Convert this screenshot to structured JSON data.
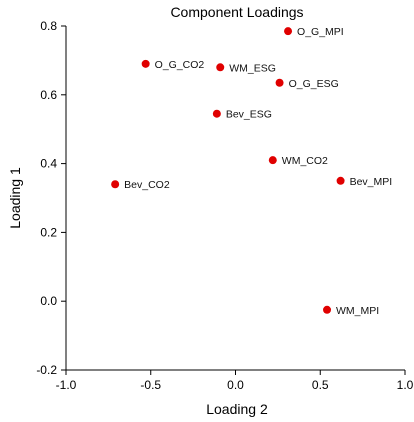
{
  "chart_data": {
    "type": "scatter",
    "title": "Component Loadings",
    "xlabel": "Loading 2",
    "ylabel": "Loading 1",
    "xlim": [
      -1.0,
      1.0
    ],
    "ylim": [
      -0.2,
      0.8
    ],
    "x_ticks": [
      "-1.0",
      "-0.5",
      "0.0",
      "0.5",
      "1.0"
    ],
    "y_ticks": [
      "0.8",
      "0.6",
      "0.4",
      "0.2",
      "0.0",
      "-0.2"
    ],
    "grid": false,
    "marker_color": "#e00000",
    "points": [
      {
        "label": "O_G_MPI",
        "x": 0.31,
        "y": 0.785
      },
      {
        "label": "O_G_CO2",
        "x": -0.53,
        "y": 0.69
      },
      {
        "label": "WM_ESG",
        "x": -0.09,
        "y": 0.68
      },
      {
        "label": "O_G_ESG",
        "x": 0.26,
        "y": 0.635
      },
      {
        "label": "Bev_ESG",
        "x": -0.11,
        "y": 0.545
      },
      {
        "label": "WM_CO2",
        "x": 0.22,
        "y": 0.41
      },
      {
        "label": "Bev_MPI",
        "x": 0.62,
        "y": 0.35
      },
      {
        "label": "Bev_CO2",
        "x": -0.71,
        "y": 0.34
      },
      {
        "label": "WM_MPI",
        "x": 0.54,
        "y": -0.025
      }
    ]
  }
}
